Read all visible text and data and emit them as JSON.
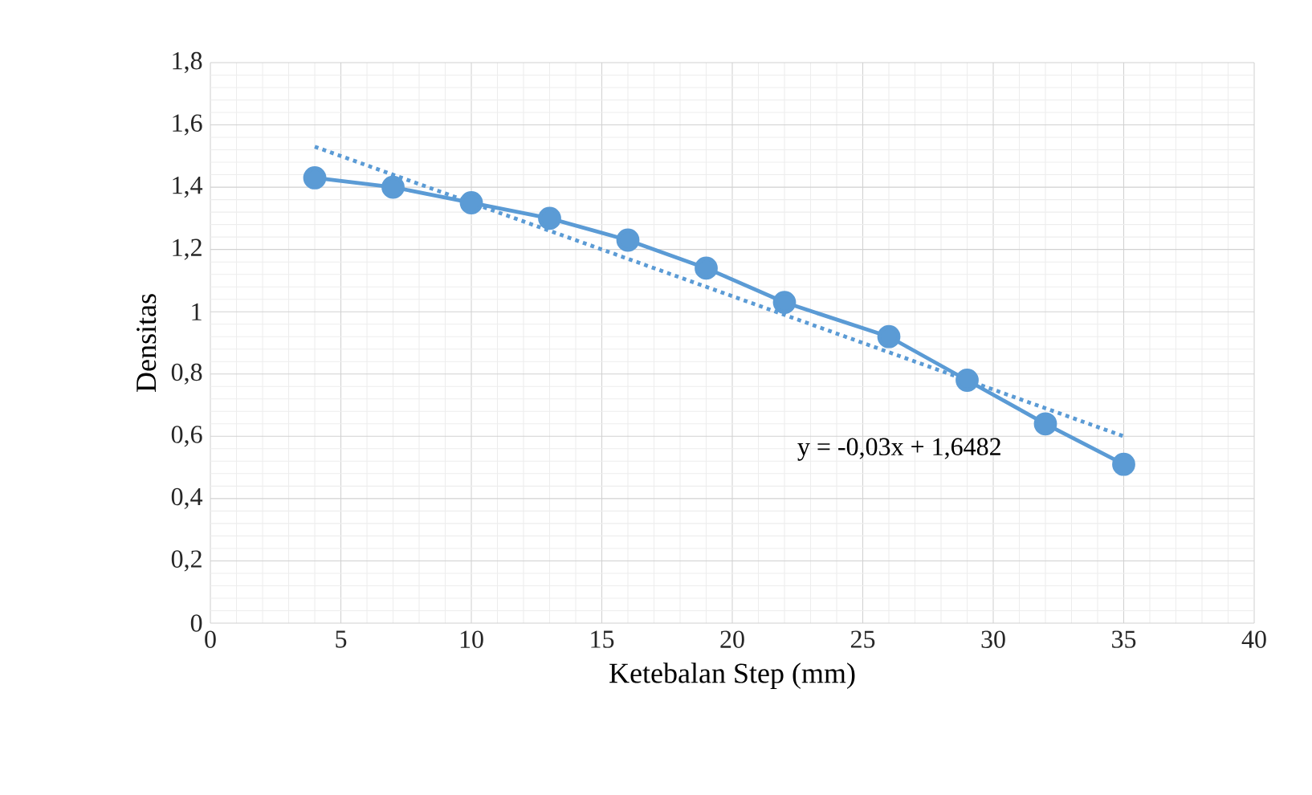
{
  "chart_data": {
    "type": "line",
    "xlabel": "Ketebalan Step (mm)",
    "ylabel": "Densitas",
    "series": [
      {
        "color": "#5b9bd5",
        "x": [
          4,
          7,
          10,
          13,
          16,
          19,
          22,
          26,
          29,
          32,
          35
        ],
        "values": [
          1.43,
          1.4,
          1.35,
          1.3,
          1.23,
          1.14,
          1.03,
          0.92,
          0.78,
          0.64,
          0.51
        ],
        "marker": "circle",
        "line_style": "solid"
      },
      {
        "color": "#5b9bd5",
        "x": [
          4,
          35
        ],
        "values": [
          1.53,
          0.6
        ],
        "marker": "none",
        "line_style": "dotted"
      }
    ],
    "xlim": [
      0,
      40
    ],
    "xticks": [
      0,
      5,
      10,
      15,
      20,
      25,
      30,
      35,
      40
    ],
    "ylim": [
      0,
      1.8
    ],
    "yticks": [
      0,
      {
        "value": 0.2,
        "label": "0,2"
      },
      {
        "value": 0.4,
        "label": "0,4"
      },
      {
        "value": 0.6,
        "label": "0,6"
      },
      {
        "value": 0.8,
        "label": "0,8"
      },
      1,
      {
        "value": 1.2,
        "label": "1,2"
      },
      {
        "value": 1.4,
        "label": "1,4"
      },
      {
        "value": 1.6,
        "label": "1,6"
      },
      {
        "value": 1.8,
        "label": "1,8"
      }
    ],
    "grid": true,
    "annotations": [
      "y = -0,03x + 1,6482"
    ]
  }
}
